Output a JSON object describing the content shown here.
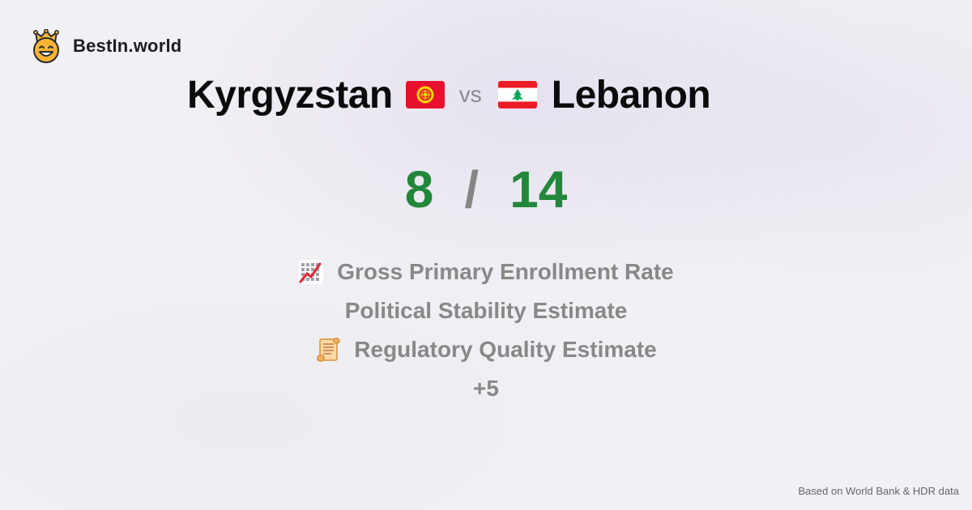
{
  "brand": {
    "name": "BestIn.world",
    "logo_icon": "smiling-crown-face-icon"
  },
  "comparison": {
    "left_country": "Kyrgyzstan",
    "left_flag": "kyrgyzstan-flag-icon",
    "vs_label": "vs",
    "right_country": "Lebanon",
    "right_flag": "lebanon-flag-icon"
  },
  "score": {
    "left": "8",
    "separator": "/",
    "right": "14"
  },
  "metrics": [
    {
      "icon": "chart-increasing-icon",
      "label": "Gross Primary Enrollment Rate"
    },
    {
      "icon": "",
      "label": "Political Stability Estimate"
    },
    {
      "icon": "scroll-icon",
      "label": "Regulatory Quality Estimate"
    }
  ],
  "more_label": "+5",
  "footer": {
    "source": "Based on World Bank & HDR data"
  },
  "colors": {
    "score_green": "#23873b",
    "muted_gray": "#888888",
    "title_black": "#0b0b0c",
    "kyrgyzstan_red": "#e8112d",
    "lebanon_red": "#ed1c24",
    "cedar_green": "#00a651"
  }
}
